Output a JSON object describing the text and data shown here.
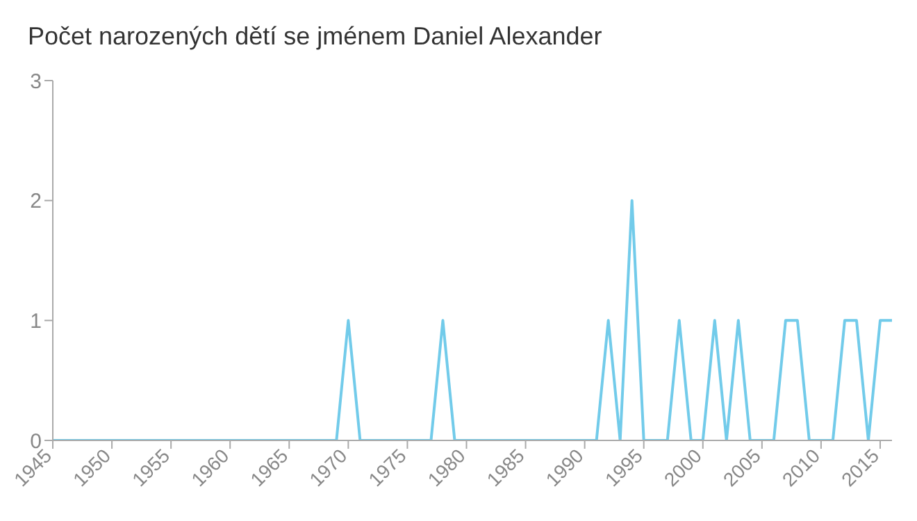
{
  "chart_data": {
    "type": "line",
    "title": "Počet narozených dětí se jménem Daniel Alexander",
    "x": [
      1945,
      1946,
      1947,
      1948,
      1949,
      1950,
      1951,
      1952,
      1953,
      1954,
      1955,
      1956,
      1957,
      1958,
      1959,
      1960,
      1961,
      1962,
      1963,
      1964,
      1965,
      1966,
      1967,
      1968,
      1969,
      1970,
      1971,
      1972,
      1973,
      1974,
      1975,
      1976,
      1977,
      1978,
      1979,
      1980,
      1981,
      1982,
      1983,
      1984,
      1985,
      1986,
      1987,
      1988,
      1989,
      1990,
      1991,
      1992,
      1993,
      1994,
      1995,
      1996,
      1997,
      1998,
      1999,
      2000,
      2001,
      2002,
      2003,
      2004,
      2005,
      2006,
      2007,
      2008,
      2009,
      2010,
      2011,
      2012,
      2013,
      2014,
      2015,
      2016
    ],
    "series": [
      {
        "color": "#72cbea",
        "values": [
          0,
          0,
          0,
          0,
          0,
          0,
          0,
          0,
          0,
          0,
          0,
          0,
          0,
          0,
          0,
          0,
          0,
          0,
          0,
          0,
          0,
          0,
          0,
          0,
          0,
          1,
          0,
          0,
          0,
          0,
          0,
          0,
          0,
          1,
          0,
          0,
          0,
          0,
          0,
          0,
          0,
          0,
          0,
          0,
          0,
          0,
          0,
          1,
          0,
          2,
          0,
          0,
          0,
          1,
          0,
          0,
          1,
          0,
          1,
          0,
          0,
          0,
          1,
          1,
          0,
          0,
          0,
          1,
          1,
          0,
          1,
          1
        ]
      }
    ],
    "xlim": [
      1945,
      2016
    ],
    "xticks": [
      1945,
      1950,
      1955,
      1960,
      1965,
      1970,
      1975,
      1980,
      1985,
      1990,
      1995,
      2000,
      2005,
      2010,
      2015
    ],
    "ylim": [
      0,
      3
    ],
    "yticks": [
      0,
      1,
      2,
      3
    ],
    "grid": false,
    "legend": false,
    "marker": "none",
    "line_style": "solid"
  }
}
